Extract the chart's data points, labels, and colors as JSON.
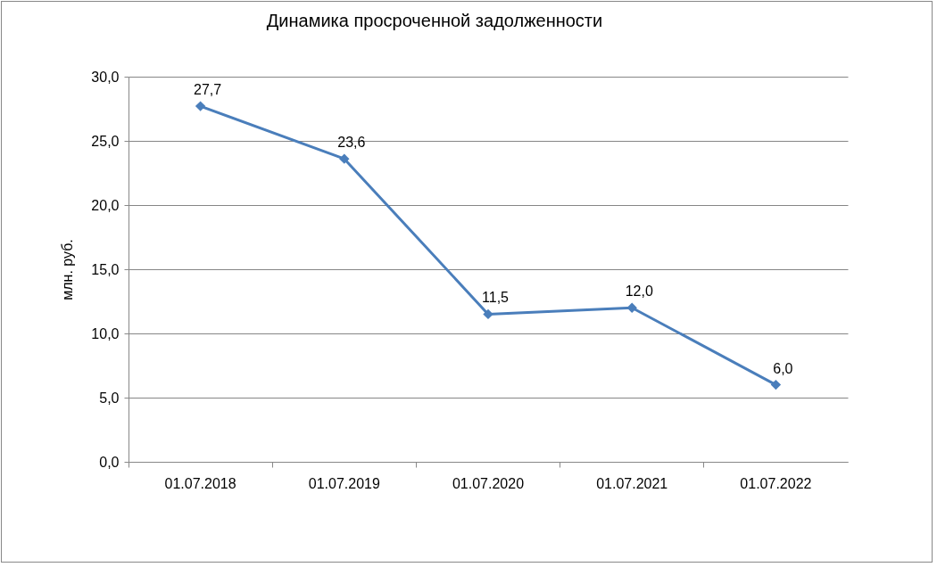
{
  "chart_data": {
    "type": "line",
    "title": "Динамика просроченной задолженности",
    "ylabel": "млн. руб.",
    "categories": [
      "01.07.2018",
      "01.07.2019",
      "01.07.2020",
      "01.07.2021",
      "01.07.2022"
    ],
    "series": [
      {
        "color": "#4a7ebb",
        "values": [
          27.7,
          23.6,
          11.5,
          12.0,
          6.0
        ],
        "value_labels": [
          "27,7",
          "23,6",
          "11,5",
          "12,0",
          "6,0"
        ]
      }
    ],
    "ylim": [
      0,
      30
    ],
    "yticks": [
      {
        "value": 0,
        "label": "0,0"
      },
      {
        "value": 5,
        "label": "5,0"
      },
      {
        "value": 10,
        "label": "10,0"
      },
      {
        "value": 15,
        "label": "15,0"
      },
      {
        "value": 20,
        "label": "20,0"
      },
      {
        "value": 25,
        "label": "25,0"
      },
      {
        "value": 30,
        "label": "30,0"
      }
    ],
    "grid": "y",
    "marker": "diamond",
    "line_style": "solid"
  }
}
